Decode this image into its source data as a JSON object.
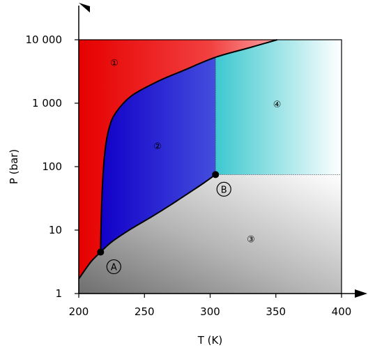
{
  "chart_data": {
    "type": "area",
    "title": "",
    "xlabel": "T (K)",
    "ylabel": "P (bar)",
    "xlim": [
      200,
      400
    ],
    "ylim": [
      1,
      10000
    ],
    "yscale": "log",
    "grid": false,
    "x_ticks": [
      {
        "value": 200,
        "label": "200"
      },
      {
        "value": 250,
        "label": "250"
      },
      {
        "value": 300,
        "label": "300"
      },
      {
        "value": 350,
        "label": "350"
      },
      {
        "value": 400,
        "label": "400"
      }
    ],
    "y_ticks": [
      {
        "value": 1,
        "label": "1"
      },
      {
        "value": 10,
        "label": "10"
      },
      {
        "value": 100,
        "label": "100"
      },
      {
        "value": 1000,
        "label": "1 000"
      },
      {
        "value": 10000,
        "label": "10 000"
      }
    ],
    "series": [
      {
        "x": [
          200,
          205,
          210,
          216.6,
          225,
          240,
          255,
          270,
          285,
          295,
          304.1
        ],
        "y": [
          1.7,
          2.4,
          3.3,
          4.5,
          6.5,
          10.5,
          16,
          25,
          40,
          55,
          75
        ]
      },
      {
        "x": [
          216.6,
          217,
          218,
          220,
          223,
          228,
          240,
          260,
          280,
          304.1,
          330,
          351
        ],
        "y": [
          4.5,
          12,
          50,
          180,
          400,
          700,
          1300,
          2200,
          3300,
          5300,
          7500,
          10000
        ]
      }
    ],
    "points": [
      {
        "x": 216.6,
        "y": 4.5,
        "label": "A"
      },
      {
        "x": 304.1,
        "y": 75,
        "label": "B"
      }
    ],
    "regions": [
      {
        "x": 227,
        "y": 4500,
        "label": "①",
        "color": "#e00000"
      },
      {
        "x": 260,
        "y": 220,
        "label": "②",
        "color": "#1a0fd0"
      },
      {
        "x": 331,
        "y": 7.5,
        "label": "③",
        "color": "#808080"
      },
      {
        "x": 351,
        "y": 1000,
        "label": "④",
        "color": "#3cc9cf"
      }
    ]
  }
}
